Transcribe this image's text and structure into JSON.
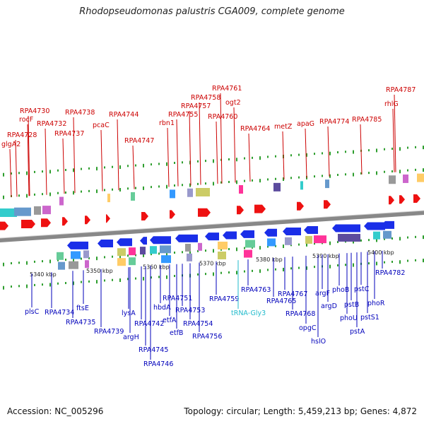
{
  "title": "Rhodopseudomonas palustris CGA009, complete genome",
  "footer": {
    "accession": "Accession: NC_005296",
    "summary": "Topology: circular; Length: 5,459,213 bp; Genes: 4,872"
  },
  "colors": {
    "forward_label": "#cc0000",
    "reverse_label": "#0000bb",
    "rna_label": "#22bbcc",
    "forward_gene": "#ee1111",
    "reverse_gene": "#1a2ee8",
    "backbone": "#888888"
  },
  "scale_ticks": [
    "5340 kbp",
    "5350 kbp",
    "5360 kbp",
    "5370 kbp",
    "5380 kbp",
    "5390 kbp",
    "5400 kbp"
  ],
  "top_labels": [
    "glgA2",
    "RPA4728",
    "rocF",
    "RPA4730",
    "RPA4732",
    "RPA4737",
    "RPA4738",
    "pcaC",
    "RPA4744",
    "RPA4747",
    "rbn1",
    "RPA4755",
    "RPA4757",
    "RPA4758",
    "RPA4760",
    "RPA4761",
    "ogt2",
    "RPA4764",
    "metZ",
    "apaG",
    "RPA4774",
    "RPA4785",
    "rhlG",
    "RPA4787"
  ],
  "bottom_labels": [
    "plsC",
    "RPA4734",
    "RPA4735",
    "ftsE",
    "RPA4739",
    "argH",
    "lysA",
    "RPA4742",
    "RPA4745",
    "RPA4746",
    "hbdA",
    "etfA",
    "etfB",
    "RPA4751",
    "RPA4753",
    "RPA4754",
    "RPA4756",
    "RPA4759",
    "tRNA-Gly3",
    "RPA4763",
    "RPA4765",
    "RPA4767",
    "RPA4768",
    "opgC",
    "hslO",
    "argF",
    "argD",
    "phoB",
    "phoU",
    "pstB",
    "pstA",
    "pstC",
    "pstS1",
    "phoR",
    "RPA4782"
  ]
}
